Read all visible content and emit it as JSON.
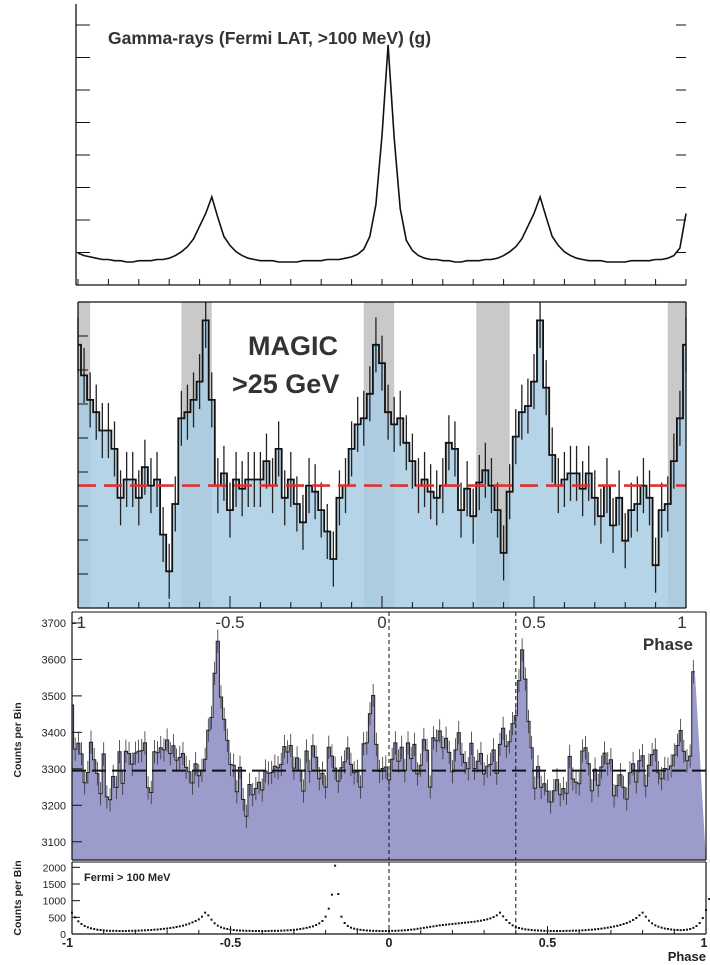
{
  "colors": {
    "magic_fill": "#a8cce4",
    "magic_band": "#c9c9c9",
    "magic_baseline": "#e03030",
    "bottom_fill": "#9c9ccc",
    "line": "#111111"
  },
  "chart_data": [
    {
      "id": "fermi-top",
      "type": "line",
      "title": "Gamma-rays (Fermi LAT, >100 MeV) (g)",
      "xlim": [
        -1,
        1
      ],
      "x_step": 0.02,
      "y": [
        2.5,
        2.3,
        2.2,
        2.1,
        2.0,
        2.0,
        1.9,
        1.9,
        1.8,
        1.8,
        1.9,
        1.9,
        1.9,
        2.0,
        2.0,
        2.1,
        2.3,
        2.6,
        3.0,
        3.6,
        4.6,
        5.6,
        6.9,
        5.3,
        3.8,
        3.1,
        2.6,
        2.3,
        2.1,
        2.0,
        1.9,
        1.9,
        1.9,
        1.8,
        1.8,
        1.8,
        1.8,
        1.9,
        1.9,
        1.9,
        1.9,
        2.0,
        2.0,
        2.0,
        2.1,
        2.2,
        2.4,
        2.8,
        3.8,
        6.3,
        11.7,
        18.8,
        11.5,
        6.0,
        3.5,
        2.7,
        2.3,
        2.1,
        2.0,
        2.0,
        1.9,
        1.9,
        1.8,
        1.8,
        1.9,
        1.9,
        1.9,
        2.0,
        2.0,
        2.1,
        2.3,
        2.6,
        3.0,
        3.6,
        4.6,
        5.6,
        6.9,
        5.3,
        3.8,
        3.1,
        2.6,
        2.3,
        2.1,
        2.0,
        1.9,
        1.9,
        1.9,
        1.8,
        1.8,
        1.8,
        1.8,
        1.9,
        1.9,
        1.9,
        1.9,
        2.0,
        2.0,
        2.1,
        2.3,
        2.9,
        5.6
      ],
      "ylim": [
        0,
        22
      ],
      "grid": false,
      "legend": "none"
    },
    {
      "id": "magic-mid",
      "type": "bar",
      "title": "MAGIC",
      "subtitle": ">25 GeV",
      "xlim": [
        -1,
        1
      ],
      "x_step": 0.02,
      "x_tick_labels": [
        "-1",
        "-0.5",
        "0",
        "0.5",
        "1"
      ],
      "x_ticks": [
        -1,
        -0.5,
        0,
        0.5,
        1
      ],
      "xlabel": "Phase",
      "y": [
        0.86,
        0.76,
        0.68,
        0.64,
        0.58,
        0.58,
        0.52,
        0.36,
        0.42,
        0.42,
        0.36,
        0.46,
        0.4,
        0.42,
        0.24,
        0.12,
        0.34,
        0.62,
        0.64,
        0.68,
        0.74,
        0.94,
        0.68,
        0.4,
        0.44,
        0.32,
        0.42,
        0.39,
        0.42,
        0.42,
        0.42,
        0.48,
        0.4,
        0.52,
        0.36,
        0.42,
        0.34,
        0.28,
        0.4,
        0.38,
        0.32,
        0.25,
        0.16,
        0.36,
        0.4,
        0.52,
        0.6,
        0.62,
        0.7,
        0.86,
        0.8,
        0.64,
        0.6,
        0.62,
        0.54,
        0.48,
        0.4,
        0.42,
        0.38,
        0.36,
        0.4,
        0.54,
        0.52,
        0.32,
        0.39,
        0.3,
        0.41,
        0.45,
        0.4,
        0.32,
        0.18,
        0.38,
        0.56,
        0.64,
        0.66,
        0.74,
        0.94,
        0.72,
        0.5,
        0.4,
        0.42,
        0.44,
        0.44,
        0.39,
        0.44,
        0.36,
        0.3,
        0.4,
        0.27,
        0.36,
        0.22,
        0.32,
        0.34,
        0.4,
        0.36,
        0.14,
        0.32,
        0.34,
        0.48,
        0.62,
        0.86
      ],
      "err": 0.09,
      "baseline": 0.4,
      "ylim": [
        0,
        1
      ],
      "bands": [
        [
          -1.0,
          -0.96
        ],
        [
          -0.66,
          -0.56
        ],
        [
          -0.06,
          0.04
        ],
        [
          0.31,
          0.42
        ],
        [
          0.94,
          1.0
        ]
      ],
      "grid": false,
      "legend": "none"
    },
    {
      "id": "bottom-main",
      "type": "bar",
      "ylabel": "Counts per Bin",
      "xlim": [
        -1,
        1
      ],
      "x_step": 0.01,
      "y_ticks": [
        3100,
        3200,
        3300,
        3400,
        3500,
        3600,
        3700
      ],
      "y_tick_labels": [
        "3100",
        "3200",
        "3300",
        "3400",
        "3500",
        "3600",
        "3700"
      ],
      "ylim": [
        3050,
        3730
      ],
      "baseline": 3295,
      "err": 32,
      "y": [
        3475,
        3354,
        3370,
        3341,
        3262,
        3290,
        3373,
        3325,
        3287,
        3232,
        3341,
        3223,
        3215,
        3279,
        3249,
        3347,
        3260,
        3348,
        3342,
        3313,
        3343,
        3348,
        3350,
        3371,
        3248,
        3235,
        3347,
        3344,
        3358,
        3352,
        3379,
        3342,
        3363,
        3324,
        3331,
        3342,
        3304,
        3292,
        3261,
        3314,
        3281,
        3296,
        3326,
        3406,
        3441,
        3562,
        3650,
        3497,
        3436,
        3378,
        3312,
        3310,
        3237,
        3304,
        3216,
        3170,
        3257,
        3229,
        3246,
        3263,
        3242,
        3294,
        3288,
        3290,
        3307,
        3303,
        3312,
        3361,
        3346,
        3364,
        3302,
        3330,
        3296,
        3239,
        3349,
        3293,
        3363,
        3332,
        3273,
        3288,
        3250,
        3359,
        3335,
        3302,
        3266,
        3303,
        3319,
        3357,
        3312,
        3289,
        3293,
        3250,
        3369,
        3371,
        3451,
        3501,
        3367,
        3293,
        3301,
        3305,
        3270,
        3326,
        3371,
        3321,
        3359,
        3295,
        3371,
        3328,
        3367,
        3286,
        3310,
        3380,
        3351,
        3250,
        3385,
        3377,
        3404,
        3358,
        3384,
        3345,
        3292,
        3352,
        3399,
        3340,
        3317,
        3300,
        3370,
        3301,
        3321,
        3342,
        3286,
        3307,
        3312,
        3352,
        3288,
        3367,
        3411,
        3362,
        3374,
        3424,
        3446,
        3542,
        3626,
        3546,
        3430,
        3358,
        3247,
        3306,
        3249,
        3259,
        3239,
        3209,
        3240,
        3270,
        3229,
        3246,
        3233,
        3334,
        3272,
        3263,
        3259,
        3349,
        3358,
        3314,
        3240,
        3299,
        3255,
        3305,
        3343,
        3314,
        3325,
        3226,
        3254,
        3284,
        3249,
        3217,
        3289,
        3314,
        3264,
        3322,
        3336,
        3253,
        3310,
        3339,
        3352,
        3289,
        3273,
        3301,
        3299,
        3308,
        3338,
        3364,
        3405,
        3348,
        3322,
        3335,
        3566
      ],
      "vlines": [
        0,
        0.4
      ],
      "grid": false,
      "legend": "none"
    },
    {
      "id": "bottom-fermi",
      "type": "scatter",
      "label": "Fermi > 100 MeV",
      "ylabel": "Counts per Bin",
      "xlabel": "Phase",
      "xlim": [
        -1,
        1
      ],
      "x_step": 0.01,
      "x_ticks": [
        -1,
        -0.5,
        0,
        0.5,
        1
      ],
      "x_tick_labels": [
        "-1",
        "-0.5",
        "0",
        "0.5",
        "1"
      ],
      "y_ticks": [
        0,
        500,
        1000,
        1500,
        2000
      ],
      "y_tick_labels": [
        "0",
        "500",
        "1000",
        "1500",
        "2000"
      ],
      "ylim": [
        0,
        2100
      ],
      "y": [
        640,
        500,
        380,
        300,
        240,
        200,
        170,
        150,
        130,
        120,
        110,
        100,
        95,
        95,
        95,
        90,
        90,
        90,
        95,
        95,
        100,
        100,
        105,
        110,
        115,
        120,
        130,
        135,
        145,
        155,
        165,
        180,
        195,
        210,
        230,
        250,
        280,
        310,
        350,
        390,
        440,
        520,
        640,
        560,
        430,
        320,
        250,
        200,
        170,
        150,
        130,
        120,
        110,
        105,
        100,
        95,
        95,
        90,
        90,
        90,
        90,
        90,
        90,
        95,
        95,
        95,
        100,
        105,
        110,
        115,
        125,
        135,
        150,
        165,
        185,
        205,
        230,
        270,
        320,
        390,
        520,
        760,
        1180,
        2050,
        1200,
        520,
        330,
        240,
        190,
        160,
        140,
        125,
        115,
        105,
        100,
        95,
        95,
        90,
        90,
        90,
        90,
        95,
        95,
        100,
        105,
        110,
        120,
        130,
        140,
        155,
        170,
        185,
        200,
        215,
        230,
        245,
        260,
        270,
        280,
        290,
        300,
        310,
        320,
        330,
        340,
        350,
        360,
        370,
        385,
        400,
        420,
        440,
        470,
        510,
        560,
        640,
        530,
        420,
        330,
        260,
        210,
        180,
        160,
        140,
        130,
        120,
        110,
        105,
        100,
        95,
        95,
        90,
        90,
        90,
        90,
        90,
        95,
        95,
        100,
        100,
        105,
        110,
        115,
        125,
        130,
        140,
        150,
        160,
        175,
        190,
        205,
        225,
        245,
        270,
        300,
        330,
        370,
        420,
        480,
        560,
        640,
        520,
        400,
        320,
        260,
        220,
        190,
        165,
        150,
        135,
        125,
        120,
        115,
        120,
        130,
        150,
        185,
        240,
        330,
        480,
        720,
        1050
      ],
      "vlines": [
        0,
        0.4
      ],
      "grid": false,
      "legend": "none"
    }
  ]
}
